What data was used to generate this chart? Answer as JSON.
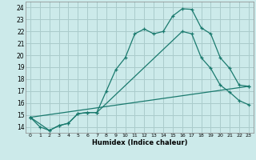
{
  "xlabel": "Humidex (Indice chaleur)",
  "bg_color": "#cceaea",
  "grid_color": "#aacccc",
  "line_color": "#1a7a6e",
  "xlim": [
    -0.5,
    23.5
  ],
  "ylim": [
    13.5,
    24.5
  ],
  "xticks": [
    0,
    1,
    2,
    3,
    4,
    5,
    6,
    7,
    8,
    9,
    10,
    11,
    12,
    13,
    14,
    15,
    16,
    17,
    18,
    19,
    20,
    21,
    22,
    23
  ],
  "yticks": [
    14,
    15,
    16,
    17,
    18,
    19,
    20,
    21,
    22,
    23,
    24
  ],
  "line1_x": [
    0,
    1,
    2,
    3,
    4,
    5,
    6,
    7,
    8,
    9,
    10,
    11,
    12,
    13,
    14,
    15,
    16,
    17,
    18,
    19,
    20,
    21,
    22,
    23
  ],
  "line1_y": [
    14.8,
    14.0,
    13.7,
    14.1,
    14.3,
    15.1,
    15.2,
    15.2,
    17.0,
    18.8,
    19.8,
    21.8,
    22.2,
    21.8,
    22.0,
    23.3,
    23.9,
    23.85,
    22.3,
    21.8,
    19.8,
    18.9,
    17.5,
    17.4
  ],
  "line2_x": [
    0,
    2,
    3,
    4,
    5,
    6,
    7,
    16,
    17,
    18,
    19,
    20,
    21,
    22,
    23
  ],
  "line2_y": [
    14.8,
    13.7,
    14.1,
    14.3,
    15.1,
    15.2,
    15.2,
    22.0,
    21.8,
    19.8,
    18.9,
    17.5,
    16.9,
    16.2,
    15.85
  ],
  "line3_x": [
    0,
    23
  ],
  "line3_y": [
    14.8,
    17.4
  ]
}
